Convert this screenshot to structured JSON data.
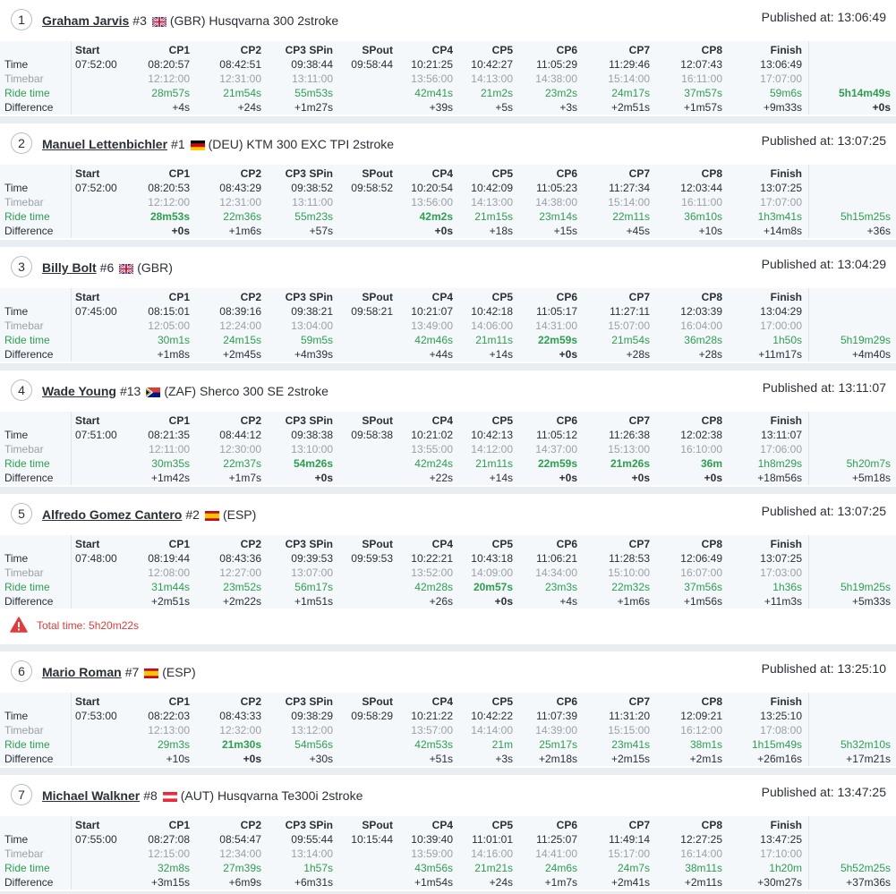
{
  "columns": [
    "Start",
    "CP1",
    "CP2",
    "CP3 SPin",
    "SPout",
    "CP4",
    "CP5",
    "CP6",
    "CP7",
    "CP8",
    "Finish"
  ],
  "row_labels": [
    "Time",
    "Timebar",
    "Ride time",
    "Difference"
  ],
  "riders": [
    {
      "position": "1",
      "name": "Graham Jarvis",
      "number": "#3",
      "flag": "GBR",
      "team": "(GBR) Husqvarna 300 2stroke",
      "published": "Published at: 13:06:49",
      "time": [
        "07:52:00",
        "08:20:57",
        "08:42:51",
        "09:38:44",
        "09:58:44",
        "10:21:25",
        "10:42:27",
        "11:05:29",
        "11:29:46",
        "12:07:43",
        "13:06:49",
        null
      ],
      "timebar": [
        null,
        "12:12:00",
        "12:31:00",
        "13:11:00",
        null,
        "13:56:00",
        "14:13:00",
        "14:38:00",
        "15:14:00",
        "16:11:00",
        "17:07:00",
        null
      ],
      "ride_time": [
        null,
        "28m57s",
        "21m54s",
        "55m53s",
        null,
        "42m41s",
        "21m2s",
        "23m2s",
        "24m17s",
        "37m57s",
        "59m6s",
        "5h14m49s"
      ],
      "difference": [
        null,
        "+4s",
        "+24s",
        "+1m27s",
        null,
        "+39s",
        "+5s",
        "+3s",
        "+2m51s",
        "+1m57s",
        "+9m33s",
        "+0s"
      ],
      "best_ride": [
        11
      ],
      "best_difference": [
        11
      ]
    },
    {
      "position": "2",
      "name": "Manuel Lettenbichler",
      "number": "#1",
      "flag": "DEU",
      "team": "(DEU) KTM 300 EXC TPI 2stroke",
      "published": "Published at: 13:07:25",
      "time": [
        "07:52:00",
        "08:20:53",
        "08:43:29",
        "09:38:52",
        "09:58:52",
        "10:20:54",
        "10:42:09",
        "11:05:23",
        "11:27:34",
        "12:03:44",
        "13:07:25",
        null
      ],
      "timebar": [
        null,
        "12:12:00",
        "12:31:00",
        "13:11:00",
        null,
        "13:56:00",
        "14:13:00",
        "14:38:00",
        "15:14:00",
        "16:11:00",
        "17:07:00",
        null
      ],
      "ride_time": [
        null,
        "28m53s",
        "22m36s",
        "55m23s",
        null,
        "42m2s",
        "21m15s",
        "23m14s",
        "22m11s",
        "36m10s",
        "1h3m41s",
        "5h15m25s"
      ],
      "difference": [
        null,
        "+0s",
        "+1m6s",
        "+57s",
        null,
        "+0s",
        "+18s",
        "+15s",
        "+45s",
        "+10s",
        "+14m8s",
        "+36s"
      ],
      "best_ride": [
        1,
        5
      ],
      "best_difference": [
        1,
        5
      ]
    },
    {
      "position": "3",
      "name": "Billy Bolt",
      "number": "#6",
      "flag": "GBR",
      "team": "(GBR)",
      "published": "Published at: 13:04:29",
      "time": [
        "07:45:00",
        "08:15:01",
        "08:39:16",
        "09:38:21",
        "09:58:21",
        "10:21:07",
        "10:42:18",
        "11:05:17",
        "11:27:11",
        "12:03:39",
        "13:04:29",
        null
      ],
      "timebar": [
        null,
        "12:05:00",
        "12:24:00",
        "13:04:00",
        null,
        "13:49:00",
        "14:06:00",
        "14:31:00",
        "15:07:00",
        "16:04:00",
        "17:00:00",
        null
      ],
      "ride_time": [
        null,
        "30m1s",
        "24m15s",
        "59m5s",
        null,
        "42m46s",
        "21m11s",
        "22m59s",
        "21m54s",
        "36m28s",
        "1h50s",
        "5h19m29s"
      ],
      "difference": [
        null,
        "+1m8s",
        "+2m45s",
        "+4m39s",
        null,
        "+44s",
        "+14s",
        "+0s",
        "+28s",
        "+28s",
        "+11m17s",
        "+4m40s"
      ],
      "best_ride": [
        7
      ],
      "best_difference": [
        7
      ]
    },
    {
      "position": "4",
      "name": "Wade Young",
      "number": "#13",
      "flag": "ZAF",
      "team": "(ZAF) Sherco 300 SE 2stroke",
      "published": "Published at: 13:11:07",
      "time": [
        "07:51:00",
        "08:21:35",
        "08:44:12",
        "09:38:38",
        "09:58:38",
        "10:21:02",
        "10:42:13",
        "11:05:12",
        "11:26:38",
        "12:02:38",
        "13:11:07",
        null
      ],
      "timebar": [
        null,
        "12:11:00",
        "12:30:00",
        "13:10:00",
        null,
        "13:55:00",
        "14:12:00",
        "14:37:00",
        "15:13:00",
        "16:10:00",
        "17:06:00",
        null
      ],
      "ride_time": [
        null,
        "30m35s",
        "22m37s",
        "54m26s",
        null,
        "42m24s",
        "21m11s",
        "22m59s",
        "21m26s",
        "36m",
        "1h8m29s",
        "5h20m7s"
      ],
      "difference": [
        null,
        "+1m42s",
        "+1m7s",
        "+0s",
        null,
        "+22s",
        "+14s",
        "+0s",
        "+0s",
        "+0s",
        "+18m56s",
        "+5m18s"
      ],
      "best_ride": [
        3,
        7,
        8,
        9
      ],
      "best_difference": [
        3,
        7,
        8,
        9
      ]
    },
    {
      "position": "5",
      "name": "Alfredo Gomez Cantero",
      "number": "#2",
      "flag": "ESP",
      "team": "(ESP)",
      "published": "Published at: 13:07:25",
      "time": [
        "07:48:00",
        "08:19:44",
        "08:43:36",
        "09:39:53",
        "09:59:53",
        "10:22:21",
        "10:43:18",
        "11:06:21",
        "11:28:53",
        "12:06:49",
        "13:07:25",
        null
      ],
      "timebar": [
        null,
        "12:08:00",
        "12:27:00",
        "13:07:00",
        null,
        "13:52:00",
        "14:09:00",
        "14:34:00",
        "15:10:00",
        "16:07:00",
        "17:03:00",
        null
      ],
      "ride_time": [
        null,
        "31m44s",
        "23m52s",
        "56m17s",
        null,
        "42m28s",
        "20m57s",
        "23m3s",
        "22m32s",
        "37m56s",
        "1h36s",
        "5h19m25s"
      ],
      "difference": [
        null,
        "+2m51s",
        "+2m22s",
        "+1m51s",
        null,
        "+26s",
        "+0s",
        "+4s",
        "+1m6s",
        "+1m56s",
        "+11m3s",
        "+5m33s"
      ],
      "best_ride": [
        6
      ],
      "best_difference": [
        6
      ],
      "warning": "Total time: 5h20m22s"
    },
    {
      "position": "6",
      "name": "Mario Roman",
      "number": "#7",
      "flag": "ESP",
      "team": "(ESP)",
      "published": "Published at: 13:25:10",
      "time": [
        "07:53:00",
        "08:22:03",
        "08:43:33",
        "09:38:29",
        "09:58:29",
        "10:21:22",
        "10:42:22",
        "11:07:39",
        "11:31:20",
        "12:09:21",
        "13:25:10",
        null
      ],
      "timebar": [
        null,
        "12:13:00",
        "12:32:00",
        "13:12:00",
        null,
        "13:57:00",
        "14:14:00",
        "14:39:00",
        "15:15:00",
        "16:12:00",
        "17:08:00",
        null
      ],
      "ride_time": [
        null,
        "29m3s",
        "21m30s",
        "54m56s",
        null,
        "42m53s",
        "21m",
        "25m17s",
        "23m41s",
        "38m1s",
        "1h15m49s",
        "5h32m10s"
      ],
      "difference": [
        null,
        "+10s",
        "+0s",
        "+30s",
        null,
        "+51s",
        "+3s",
        "+2m18s",
        "+2m15s",
        "+2m1s",
        "+26m16s",
        "+17m21s"
      ],
      "best_ride": [
        2
      ],
      "best_difference": [
        2
      ]
    },
    {
      "position": "7",
      "name": "Michael Walkner",
      "number": "#8",
      "flag": "AUT",
      "team": "(AUT) Husqvarna Te300i 2stroke",
      "published": "Published at: 13:47:25",
      "time": [
        "07:55:00",
        "08:27:08",
        "08:54:47",
        "09:55:44",
        "10:15:44",
        "10:39:40",
        "11:01:01",
        "11:25:07",
        "11:49:14",
        "12:27:25",
        "13:47:25",
        null
      ],
      "timebar": [
        null,
        "12:15:00",
        "12:34:00",
        "13:14:00",
        null,
        "13:59:00",
        "14:16:00",
        "14:41:00",
        "15:17:00",
        "16:14:00",
        "17:10:00",
        null
      ],
      "ride_time": [
        null,
        "32m8s",
        "27m39s",
        "1h57s",
        null,
        "43m56s",
        "21m21s",
        "24m6s",
        "24m7s",
        "38m11s",
        "1h20m",
        "5h52m25s"
      ],
      "difference": [
        null,
        "+3m15s",
        "+6m9s",
        "+6m31s",
        null,
        "+1m54s",
        "+24s",
        "+1m7s",
        "+2m41s",
        "+2m11s",
        "+30m27s",
        "+37m36s"
      ],
      "best_ride": [],
      "best_difference": []
    }
  ]
}
